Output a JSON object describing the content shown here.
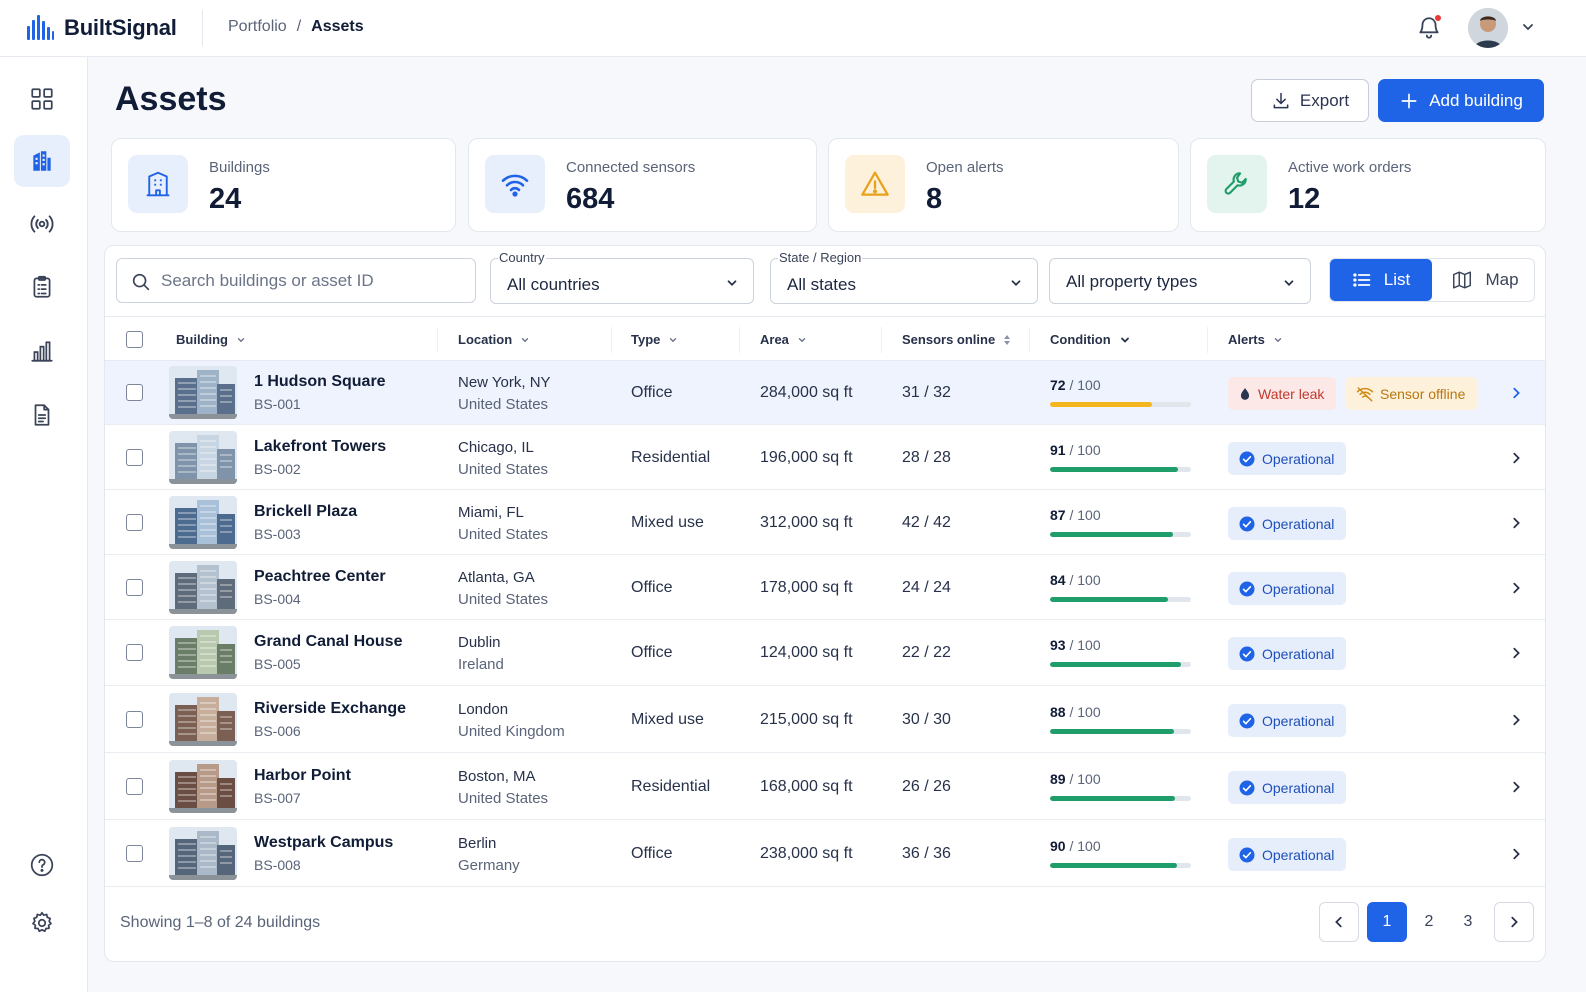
{
  "app": {
    "name": "BuiltSignal"
  },
  "breadcrumb": {
    "parent": "Portfolio",
    "separator": "/",
    "current": "Assets"
  },
  "header": {
    "title": "Assets",
    "export_label": "Export",
    "add_label": "Add building"
  },
  "stats": [
    {
      "label": "Buildings",
      "value": "24",
      "icon": "building-icon"
    },
    {
      "label": "Connected sensors",
      "value": "684",
      "icon": "wifi-icon"
    },
    {
      "label": "Open alerts",
      "value": "8",
      "icon": "warning-icon"
    },
    {
      "label": "Active work orders",
      "value": "12",
      "icon": "wrench-icon"
    }
  ],
  "filters": {
    "search_placeholder": "Search buildings or asset ID",
    "country_label": "Country",
    "country_value": "All countries",
    "state_label": "State / Region",
    "state_value": "All states",
    "type_value": "All property types",
    "view_list": "List",
    "view_map": "Map"
  },
  "columns": {
    "building": "Building",
    "location": "Location",
    "type": "Type",
    "area": "Area",
    "sensors": "Sensors online",
    "condition": "Condition",
    "alerts": "Alerts"
  },
  "rows": [
    {
      "name": "1 Hudson Square",
      "id": "BS-001",
      "city": "New York, NY",
      "country": "United States",
      "type": "Office",
      "area": "284,000 sq ft",
      "sensors": "31 / 32",
      "condition": "72",
      "condition_max": "/ 100",
      "score": 72,
      "alerts": [
        "Water leak",
        "Sensor offline"
      ]
    },
    {
      "name": "Lakefront Towers",
      "id": "BS-002",
      "city": "Chicago, IL",
      "country": "United States",
      "type": "Residential",
      "area": "196,000 sq ft",
      "sensors": "28 / 28",
      "condition": "91",
      "condition_max": "/ 100",
      "score": 91,
      "status": "Operational"
    },
    {
      "name": "Brickell Plaza",
      "id": "BS-003",
      "city": "Miami, FL",
      "country": "United States",
      "type": "Mixed use",
      "area": "312,000 sq ft",
      "sensors": "42 / 42",
      "condition": "87",
      "condition_max": "/ 100",
      "score": 87,
      "status": "Operational"
    },
    {
      "name": "Peachtree Center",
      "id": "BS-004",
      "city": "Atlanta, GA",
      "country": "United States",
      "type": "Office",
      "area": "178,000 sq ft",
      "sensors": "24 / 24",
      "condition": "84",
      "condition_max": "/ 100",
      "score": 84,
      "status": "Operational"
    },
    {
      "name": "Grand Canal House",
      "id": "BS-005",
      "city": "Dublin",
      "country": "Ireland",
      "type": "Office",
      "area": "124,000 sq ft",
      "sensors": "22 / 22",
      "condition": "93",
      "condition_max": "/ 100",
      "score": 93,
      "status": "Operational"
    },
    {
      "name": "Riverside Exchange",
      "id": "BS-006",
      "city": "London",
      "country": "United Kingdom",
      "type": "Mixed use",
      "area": "215,000 sq ft",
      "sensors": "30 / 30",
      "condition": "88",
      "condition_max": "/ 100",
      "score": 88,
      "status": "Operational"
    },
    {
      "name": "Harbor Point",
      "id": "BS-007",
      "city": "Boston, MA",
      "country": "United States",
      "type": "Residential",
      "area": "168,000 sq ft",
      "sensors": "26 / 26",
      "condition": "89",
      "condition_max": "/ 100",
      "score": 89,
      "status": "Operational"
    },
    {
      "name": "Westpark Campus",
      "id": "BS-008",
      "city": "Berlin",
      "country": "Germany",
      "type": "Office",
      "area": "238,000 sq ft",
      "sensors": "36 / 36",
      "condition": "90",
      "condition_max": "/ 100",
      "score": 90,
      "status": "Operational"
    }
  ],
  "footer": {
    "showing_prefix": "Showing 1–8 of",
    "total": "24",
    "showing_suffix": "buildings",
    "pages": [
      "1",
      "2",
      "3"
    ],
    "current_page": "1"
  },
  "colors": {
    "accent": "#1f63e6",
    "good": "#1f9d6a",
    "warn": "#f5b51f",
    "danger": "#c0392b"
  }
}
